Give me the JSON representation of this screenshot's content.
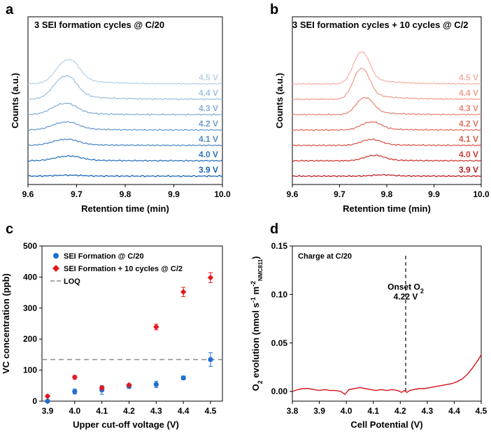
{
  "chart_data": [
    {
      "panel": "a",
      "type": "line",
      "title": "3 SEI formation cycles @ C/20",
      "xlabel": "Retention time (min)",
      "ylabel": "Counts (a.u.)",
      "xlim": [
        9.6,
        10.0
      ],
      "xticks": [
        "9.6",
        "9.7",
        "9.8",
        "9.9",
        "10.0"
      ],
      "series": [
        {
          "name": "4.5 V",
          "color": "#b9d3e8",
          "baseline": 6,
          "peak": {
            "x": 9.68,
            "height": 2.6,
            "width": 0.022
          }
        },
        {
          "name": "4.4 V",
          "color": "#a2c3e0",
          "baseline": 5,
          "peak": {
            "x": 9.675,
            "height": 2.5,
            "width": 0.022
          }
        },
        {
          "name": "4.3 V",
          "color": "#87b2d9",
          "baseline": 4,
          "peak": {
            "x": 9.673,
            "height": 1.2,
            "width": 0.024
          }
        },
        {
          "name": "4.2 V",
          "color": "#6c9fd0",
          "baseline": 3,
          "peak": {
            "x": 9.675,
            "height": 0.85,
            "width": 0.025
          }
        },
        {
          "name": "4.1 V",
          "color": "#4f8bc7",
          "baseline": 2,
          "peak": {
            "x": 9.675,
            "height": 0.65,
            "width": 0.025
          }
        },
        {
          "name": "4.0 V",
          "color": "#2f76be",
          "baseline": 1,
          "peak": {
            "x": 9.68,
            "height": 0.5,
            "width": 0.025
          }
        },
        {
          "name": "3.9 V",
          "color": "#1464b4",
          "baseline": 0,
          "peak": {
            "x": 9.68,
            "height": 0.1,
            "width": 0.025
          }
        }
      ]
    },
    {
      "panel": "b",
      "type": "line",
      "title": "3 SEI formation cycles + 10 cycles @ C/2",
      "xlabel": "Retention time (min)",
      "ylabel": "Counts (a.u.)",
      "xlim": [
        9.6,
        10.0
      ],
      "xticks": [
        "9.6",
        "9.7",
        "9.8",
        "9.9",
        "10.0"
      ],
      "series": [
        {
          "name": "4.5 V",
          "color": "#f4b4a8",
          "baseline": 6,
          "peak": {
            "x": 9.745,
            "height": 3.0,
            "width": 0.016
          }
        },
        {
          "name": "4.4 V",
          "color": "#f0a090",
          "baseline": 5,
          "peak": {
            "x": 9.745,
            "height": 2.9,
            "width": 0.016
          }
        },
        {
          "name": "4.3 V",
          "color": "#ea8a78",
          "baseline": 4,
          "peak": {
            "x": 9.752,
            "height": 1.6,
            "width": 0.017
          }
        },
        {
          "name": "4.2 V",
          "color": "#e37262",
          "baseline": 3,
          "peak": {
            "x": 9.765,
            "height": 0.75,
            "width": 0.02
          }
        },
        {
          "name": "4.1 V",
          "color": "#d95a4d",
          "baseline": 2,
          "peak": {
            "x": 9.765,
            "height": 0.55,
            "width": 0.02
          }
        },
        {
          "name": "4.0 V",
          "color": "#cc3d37",
          "baseline": 1,
          "peak": {
            "x": 9.772,
            "height": 0.5,
            "width": 0.02
          }
        },
        {
          "name": "3.9 V",
          "color": "#b82229",
          "baseline": 0,
          "peak": {
            "x": 9.79,
            "height": 0.12,
            "width": 0.02
          }
        }
      ]
    },
    {
      "panel": "c",
      "type": "scatter",
      "xlabel": "Upper cut-off voltage (V)",
      "ylabel": "VC concentration (ppb)",
      "categories": [
        "3.9",
        "4.0",
        "4.1",
        "4.2",
        "4.3",
        "4.4",
        "4.5"
      ],
      "ylim": [
        0,
        500
      ],
      "yticks": [
        "0",
        "100",
        "200",
        "300",
        "400",
        "500"
      ],
      "series": [
        {
          "name": "SEI Formation @ C/20",
          "marker": "circle",
          "color": "#1f6fd1",
          "values": [
            0,
            31,
            36,
            48,
            54,
            75,
            134
          ],
          "errors": [
            2,
            8,
            14,
            7,
            10,
            6,
            22
          ]
        },
        {
          "name": "SEI Formation + 10 cycles @ C/2",
          "marker": "diamond",
          "color": "#e0191f",
          "values": [
            16,
            77,
            43,
            52,
            239,
            352,
            398
          ],
          "errors": [
            3,
            6,
            5,
            4,
            9,
            15,
            16
          ]
        }
      ],
      "loq": {
        "name": "LOQ",
        "value": 134,
        "color": "#8c8c8c"
      }
    },
    {
      "panel": "d",
      "type": "line",
      "xlabel": "Cell Potential (V)",
      "ylabel_main": "O",
      "ylabel_sub1": "2",
      "ylabel_mid": " evolution (nmol s",
      "ylabel_sup1": "-1",
      "ylabel_m": " m",
      "ylabel_sup2": "-2",
      "ylabel_sub2": "NMC811",
      "ylabel_end": ")",
      "xlim": [
        3.8,
        4.5
      ],
      "xticks": [
        "3.8",
        "3.9",
        "4.0",
        "4.1",
        "4.2",
        "4.3",
        "4.4",
        "4.5"
      ],
      "ylim": [
        -0.01,
        0.15
      ],
      "yticks": [
        "0.00",
        "0.05",
        "0.10",
        "0.15"
      ],
      "annotation_text": "Charge at C/20",
      "onset": {
        "label": "Onset O",
        "label_sub": "2",
        "value_text": "4.22 V",
        "x": 4.22
      },
      "color": "#d4141b",
      "x": [
        3.8,
        3.82,
        3.84,
        3.86,
        3.88,
        3.9,
        3.92,
        3.94,
        3.96,
        3.98,
        3.995,
        4.01,
        4.03,
        4.05,
        4.07,
        4.09,
        4.11,
        4.13,
        4.15,
        4.17,
        4.19,
        4.205,
        4.215,
        4.225,
        4.235,
        4.25,
        4.27,
        4.29,
        4.31,
        4.33,
        4.35,
        4.37,
        4.39,
        4.41,
        4.43,
        4.45,
        4.47,
        4.49,
        4.5
      ],
      "y": [
        0.0,
        0.002,
        0.003,
        0.003,
        0.002,
        0.001,
        0.002,
        0.001,
        0.001,
        0.0,
        -0.003,
        0.002,
        0.003,
        0.004,
        0.003,
        0.002,
        0.001,
        0.002,
        0.001,
        0.002,
        0.001,
        -0.001,
        0.001,
        -0.001,
        0.001,
        0.002,
        0.003,
        0.003,
        0.004,
        0.005,
        0.006,
        0.007,
        0.008,
        0.01,
        0.013,
        0.018,
        0.025,
        0.033,
        0.038
      ]
    }
  ],
  "panel_labels": {
    "a": "a",
    "b": "b",
    "c": "c",
    "d": "d"
  }
}
